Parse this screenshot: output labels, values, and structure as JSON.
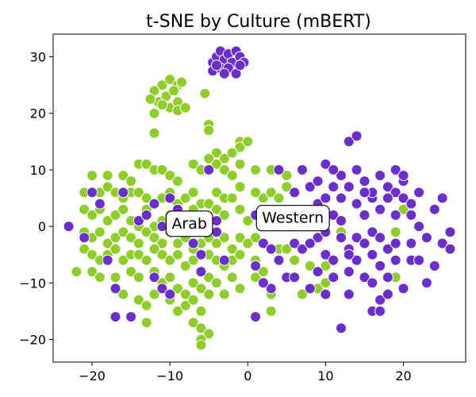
{
  "chart_data": {
    "type": "scatter",
    "title": "t-SNE by Culture (mBERT)",
    "xlabel": "",
    "ylabel": "",
    "xlim": [
      -25,
      28
    ],
    "ylim": [
      -24,
      34
    ],
    "xticks": [
      -20,
      -10,
      0,
      10,
      20
    ],
    "yticks": [
      -20,
      -10,
      0,
      10,
      20,
      30
    ],
    "grid": false,
    "colors": {
      "arab": "#8fce2a",
      "western": "#6a2ecb",
      "edge": "#ffffff"
    },
    "annotations": [
      {
        "text": "Arab",
        "x": -7.5,
        "y": 0.6
      },
      {
        "text": "Western",
        "x": 5.8,
        "y": 1.6
      }
    ],
    "series": [
      {
        "key": "arab",
        "points": [
          [
            -11,
            25
          ],
          [
            -10,
            26
          ],
          [
            -9,
            25
          ],
          [
            -12,
            24
          ],
          [
            -10.5,
            23
          ],
          [
            -9.5,
            24
          ],
          [
            -11.5,
            22
          ],
          [
            -8.5,
            25.5
          ],
          [
            -12.5,
            22.5
          ],
          [
            -10,
            21
          ],
          [
            -9,
            22
          ],
          [
            -11,
            21.5
          ],
          [
            -5.5,
            23.5
          ],
          [
            -9,
            20.5
          ],
          [
            -12,
            20
          ],
          [
            -8,
            21
          ],
          [
            -12,
            16.5
          ],
          [
            -5,
            18
          ],
          [
            -5,
            17
          ],
          [
            -4,
            13
          ],
          [
            -3,
            12
          ],
          [
            -1,
            15
          ],
          [
            -1,
            14
          ],
          [
            -2,
            13
          ],
          [
            -5,
            12
          ],
          [
            0,
            15
          ],
          [
            -20,
            9
          ],
          [
            -18,
            9
          ],
          [
            -16,
            9
          ],
          [
            -15,
            8
          ],
          [
            -14,
            11
          ],
          [
            -13,
            11
          ],
          [
            -12,
            10
          ],
          [
            -11,
            10
          ],
          [
            -10,
            9
          ],
          [
            -9,
            8
          ],
          [
            -7,
            11
          ],
          [
            -6,
            10
          ],
          [
            -4,
            11
          ],
          [
            -3,
            10
          ],
          [
            -2,
            9
          ],
          [
            -1,
            11
          ],
          [
            1,
            10
          ],
          [
            -21,
            6
          ],
          [
            -19,
            6
          ],
          [
            -18,
            7
          ],
          [
            -17,
            6
          ],
          [
            -16,
            5
          ],
          [
            -15,
            6
          ],
          [
            -14,
            6
          ],
          [
            -13,
            5
          ],
          [
            -12,
            4
          ],
          [
            -11,
            5
          ],
          [
            -10,
            6
          ],
          [
            -9,
            4
          ],
          [
            -8,
            5
          ],
          [
            -7,
            6
          ],
          [
            -6,
            4
          ],
          [
            -5,
            4
          ],
          [
            -4,
            6
          ],
          [
            -3,
            5
          ],
          [
            -2,
            5
          ],
          [
            -1,
            7
          ],
          [
            -21,
            3
          ],
          [
            -20,
            2
          ],
          [
            -19,
            3
          ],
          [
            -18,
            1
          ],
          [
            -17,
            2
          ],
          [
            -16,
            3
          ],
          [
            -15,
            1
          ],
          [
            -14,
            0
          ],
          [
            -13,
            3
          ],
          [
            -12,
            0
          ],
          [
            -11,
            1
          ],
          [
            -10,
            2
          ],
          [
            -8,
            1
          ],
          [
            -7,
            3
          ],
          [
            -6,
            2
          ],
          [
            -5,
            1
          ],
          [
            -4,
            3
          ],
          [
            -3,
            2
          ],
          [
            -1,
            3
          ],
          [
            0,
            1
          ],
          [
            -21,
            -1
          ],
          [
            -20,
            -2
          ],
          [
            -19,
            -1
          ],
          [
            -18,
            -3
          ],
          [
            -17,
            -2
          ],
          [
            -16,
            -1
          ],
          [
            -15,
            -2
          ],
          [
            -14,
            -3
          ],
          [
            -13,
            -1
          ],
          [
            -12,
            -2
          ],
          [
            -11,
            -3
          ],
          [
            -10,
            -1
          ],
          [
            -9,
            -3
          ],
          [
            -8,
            -2
          ],
          [
            -7,
            -4
          ],
          [
            -6,
            -3
          ],
          [
            -5,
            -2
          ],
          [
            -4,
            -3
          ],
          [
            -3,
            -2
          ],
          [
            -2,
            -4
          ],
          [
            -1,
            -2
          ],
          [
            0,
            -3
          ],
          [
            -21,
            -4
          ],
          [
            -20,
            -5
          ],
          [
            -19,
            -6
          ],
          [
            -18,
            -5
          ],
          [
            -17,
            -4
          ],
          [
            -16,
            -6
          ],
          [
            -15,
            -5
          ],
          [
            -14,
            -5
          ],
          [
            -13,
            -6
          ],
          [
            -12,
            -4
          ],
          [
            -11,
            -5
          ],
          [
            -10,
            -6
          ],
          [
            -9,
            -5
          ],
          [
            -8,
            -7
          ],
          [
            -7,
            -6
          ],
          [
            -6,
            -8
          ],
          [
            -5,
            -5
          ],
          [
            -4,
            -6
          ],
          [
            -3,
            -7
          ],
          [
            -2,
            -6
          ],
          [
            -1,
            -5
          ],
          [
            -22,
            -8
          ],
          [
            -20,
            -8
          ],
          [
            -19,
            -9
          ],
          [
            -17,
            -9
          ],
          [
            -15,
            -8
          ],
          [
            -14,
            -9
          ],
          [
            -12,
            -8
          ],
          [
            -11,
            -10
          ],
          [
            -10,
            -9
          ],
          [
            -9,
            -11
          ],
          [
            -8,
            -12
          ],
          [
            -7,
            -10
          ],
          [
            -6,
            -11
          ],
          [
            -5,
            -9
          ],
          [
            -4,
            -10
          ],
          [
            -3,
            -12
          ],
          [
            -2,
            -9
          ],
          [
            -1,
            -11
          ],
          [
            -16,
            -12
          ],
          [
            -14,
            -13
          ],
          [
            -13,
            -14
          ],
          [
            -12,
            -12
          ],
          [
            -10,
            -13
          ],
          [
            -9,
            -15
          ],
          [
            -8,
            -14
          ],
          [
            -7,
            -13
          ],
          [
            -6,
            -15
          ],
          [
            -5,
            -12
          ],
          [
            -13,
            -17
          ],
          [
            -7,
            -17
          ],
          [
            -6,
            -18
          ],
          [
            -5,
            -19
          ],
          [
            -6,
            -20
          ],
          [
            -6,
            -21
          ],
          [
            1,
            -6
          ],
          [
            1,
            -9
          ],
          [
            2,
            -8
          ],
          [
            3,
            -12
          ],
          [
            3,
            -15
          ],
          [
            2,
            5
          ],
          [
            3,
            6
          ],
          [
            4,
            5
          ],
          [
            5,
            9
          ],
          [
            5,
            7
          ],
          [
            3,
            10
          ],
          [
            1,
            6
          ],
          [
            2,
            3
          ],
          [
            1,
            -2
          ],
          [
            4,
            -4
          ],
          [
            5,
            -4
          ],
          [
            6,
            -6
          ],
          [
            7,
            -12
          ],
          [
            8,
            -7
          ],
          [
            9,
            -11
          ],
          [
            10,
            -10
          ],
          [
            10,
            -7
          ],
          [
            12,
            -1
          ],
          [
            19,
            -1
          ],
          [
            19,
            -9
          ],
          [
            20,
            3
          ]
        ]
      },
      {
        "key": "western",
        "points": [
          [
            -4.5,
            29
          ],
          [
            -4,
            30
          ],
          [
            -3.5,
            31
          ],
          [
            -3,
            29.5
          ],
          [
            -2.5,
            30.5
          ],
          [
            -2,
            29
          ],
          [
            -1.5,
            31
          ],
          [
            -1,
            30
          ],
          [
            -0.5,
            29
          ],
          [
            -4.5,
            27.5
          ],
          [
            -3.5,
            28
          ],
          [
            -2.5,
            28
          ],
          [
            -1.5,
            27
          ],
          [
            -3,
            27
          ],
          [
            -4,
            28.5
          ],
          [
            -1,
            28.5
          ],
          [
            -23,
            0
          ],
          [
            -21,
            -2
          ],
          [
            -20,
            6
          ],
          [
            -19,
            4
          ],
          [
            -18,
            -6
          ],
          [
            -17,
            -11
          ],
          [
            -17,
            -16
          ],
          [
            -16,
            6
          ],
          [
            -15,
            -16
          ],
          [
            -14,
            1
          ],
          [
            -13,
            2
          ],
          [
            -12,
            4
          ],
          [
            -12,
            -9
          ],
          [
            -11,
            -11
          ],
          [
            -11,
            0
          ],
          [
            -10,
            5
          ],
          [
            -10,
            -12
          ],
          [
            -9,
            3
          ],
          [
            -7,
            -3
          ],
          [
            -6,
            -5
          ],
          [
            -6,
            -8
          ],
          [
            -4,
            -1
          ],
          [
            -3,
            -6
          ],
          [
            -5,
            10
          ],
          [
            -4,
            1
          ],
          [
            1,
            2
          ],
          [
            1,
            -7
          ],
          [
            2,
            -3
          ],
          [
            3,
            -11
          ],
          [
            3,
            -4
          ],
          [
            3,
            1
          ],
          [
            4,
            10
          ],
          [
            4,
            -6
          ],
          [
            5,
            -9
          ],
          [
            2,
            -10
          ],
          [
            1,
            -16
          ],
          [
            6,
            6
          ],
          [
            6,
            -3
          ],
          [
            7,
            10
          ],
          [
            8,
            7
          ],
          [
            8,
            1
          ],
          [
            7,
            -4
          ],
          [
            8,
            -11
          ],
          [
            9,
            -8
          ],
          [
            9,
            -2
          ],
          [
            9,
            4
          ],
          [
            9,
            8
          ],
          [
            10,
            11
          ],
          [
            10,
            5
          ],
          [
            10,
            -1
          ],
          [
            10,
            -5
          ],
          [
            11,
            -6
          ],
          [
            11,
            2
          ],
          [
            11,
            7
          ],
          [
            12,
            9
          ],
          [
            12,
            -2
          ],
          [
            13,
            15
          ],
          [
            13,
            -12
          ],
          [
            12,
            -18
          ],
          [
            11,
            10
          ],
          [
            12,
            5
          ],
          [
            12,
            1
          ],
          [
            13,
            -4
          ],
          [
            13,
            -8
          ],
          [
            14,
            10
          ],
          [
            14,
            4
          ],
          [
            14,
            -2
          ],
          [
            14,
            -6
          ],
          [
            15,
            8
          ],
          [
            15,
            2
          ],
          [
            15,
            -3
          ],
          [
            15,
            -9
          ],
          [
            14,
            16
          ],
          [
            16,
            5
          ],
          [
            16,
            -1
          ],
          [
            16,
            -5
          ],
          [
            16,
            -10
          ],
          [
            17,
            9
          ],
          [
            17,
            3
          ],
          [
            17,
            -2
          ],
          [
            17,
            -7
          ],
          [
            17,
            -13
          ],
          [
            18,
            7
          ],
          [
            18,
            -4
          ],
          [
            18,
            -12
          ],
          [
            19,
            10
          ],
          [
            19,
            6
          ],
          [
            19,
            2
          ],
          [
            19,
            -3
          ],
          [
            20,
            8
          ],
          [
            20,
            5
          ],
          [
            21,
            2
          ],
          [
            21,
            -3
          ],
          [
            22,
            0
          ],
          [
            22,
            6
          ],
          [
            23,
            -2
          ],
          [
            24,
            3
          ],
          [
            25,
            5
          ],
          [
            25,
            -3
          ],
          [
            26,
            -1
          ],
          [
            26,
            -4
          ],
          [
            16,
            -15
          ],
          [
            18,
            -9
          ],
          [
            20,
            -11
          ],
          [
            21,
            -6
          ],
          [
            24,
            -7
          ],
          [
            23,
            -10
          ],
          [
            16,
            6
          ],
          [
            13,
            7
          ],
          [
            11,
            -9
          ],
          [
            8,
            -3
          ],
          [
            6,
            -9
          ],
          [
            18,
            5
          ],
          [
            20,
            9
          ],
          [
            22,
            -6
          ],
          [
            15,
            6
          ],
          [
            13,
            -5
          ],
          [
            10,
            -12
          ],
          [
            17,
            -15
          ],
          [
            21,
            4
          ],
          [
            19,
            -6
          ]
        ]
      }
    ]
  }
}
